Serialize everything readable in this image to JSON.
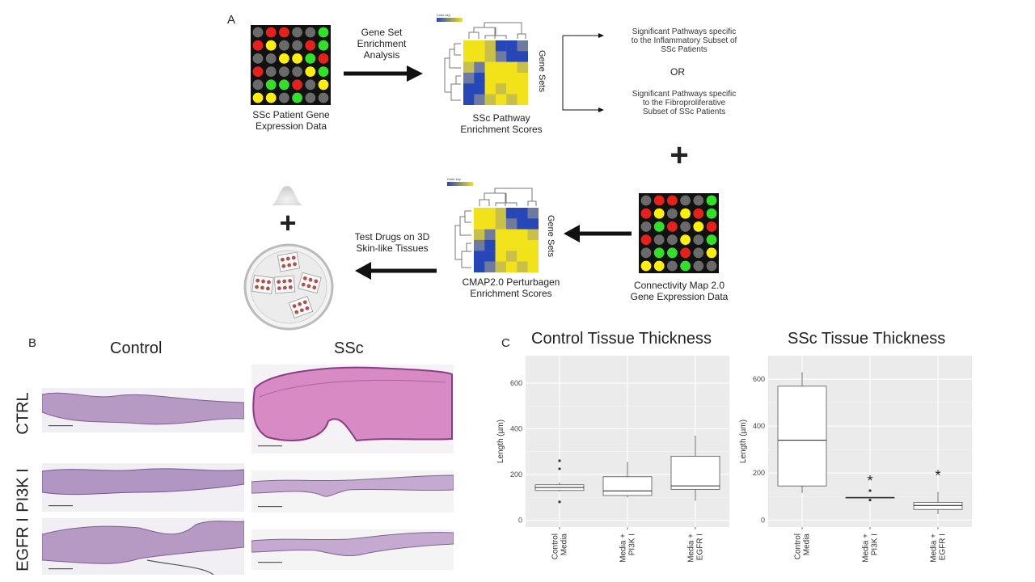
{
  "panel_a": {
    "letter": "A",
    "gene_expression_label": "SSc Patient Gene Expression Data",
    "gsea_label": "Gene Set Enrichment Analysis",
    "heatmap1_label": "SSc Pathway Enrichment Scores",
    "gene_sets_label": "Gene Sets",
    "color_key": "Color key",
    "inflammatory_text": "Significant Pathways specific to the Inflammatory Subset of SSc Patients",
    "or_text": "OR",
    "fibro_text": "Significant Pathways specific to the Fibroproliferative Subset of SSc Patients",
    "plus": "+",
    "cmap_label": "Connectivity Map 2.0  Gene Expression Data",
    "heatmap2_label": "CMAP2.0 Perturbagen Enrichment Scores",
    "test_drugs_label": "Test Drugs on 3D Skin-like Tissues",
    "colors": {
      "red": "#e8201c",
      "green": "#33e028",
      "yellow": "#ffef0a",
      "gray": "#6a6a6a",
      "blue": "#2746b8",
      "heat_yellow": "#f2e21a"
    },
    "grid1": [
      [
        "gray",
        "red",
        "red",
        "gray",
        "gray",
        "green"
      ],
      [
        "red",
        "yellow",
        "gray",
        "gray",
        "red",
        "green"
      ],
      [
        "gray",
        "gray",
        "yellow",
        "yellow",
        "green",
        "red"
      ],
      [
        "red",
        "gray",
        "gray",
        "gray",
        "yellow",
        "green"
      ],
      [
        "gray",
        "green",
        "green",
        "red",
        "gray",
        "yellow"
      ],
      [
        "yellow",
        "yellow",
        "gray",
        "green",
        "gray",
        "gray"
      ]
    ],
    "grid2": [
      [
        "gray",
        "red",
        "red",
        "gray",
        "gray",
        "green"
      ],
      [
        "red",
        "yellow",
        "gray",
        "yellow",
        "red",
        "green"
      ],
      [
        "gray",
        "green",
        "red",
        "gray",
        "yellow",
        "red"
      ],
      [
        "red",
        "gray",
        "gray",
        "yellow",
        "gray",
        "green"
      ],
      [
        "gray",
        "green",
        "green",
        "red",
        "gray",
        "yellow"
      ],
      [
        "yellow",
        "yellow",
        "gray",
        "green",
        "gray",
        "gray"
      ]
    ]
  },
  "panel_b": {
    "letter": "B",
    "columns": [
      "Control",
      "SSc"
    ],
    "rows": [
      "CTRL",
      "PI3K I",
      "EGFR I"
    ]
  },
  "panel_c": {
    "letter": "C",
    "charts": [
      {
        "title": "Control Tissue Thickness",
        "ylabel": "Length (µm)",
        "yticks": [
          "0",
          "200",
          "400",
          "600"
        ],
        "ylim": [
          -30,
          720
        ],
        "categories": [
          "Control Media",
          "Media + PI3K I",
          "Media + EGFR I"
        ],
        "boxes": [
          {
            "min": 125,
            "q1": 130,
            "median": 143,
            "q3": 155,
            "max": 165,
            "outliers": [
              260,
              225,
              80
            ]
          },
          {
            "min": 100,
            "q1": 108,
            "median": 128,
            "q3": 190,
            "max": 255,
            "outliers": []
          },
          {
            "min": 85,
            "q1": 135,
            "median": 150,
            "q3": 280,
            "max": 370,
            "outliers": []
          }
        ],
        "significance": [
          "",
          "",
          ""
        ]
      },
      {
        "title": "SSc Tissue Thickness",
        "ylabel": "Length (µm)",
        "yticks": [
          "0",
          "200",
          "400",
          "600"
        ],
        "ylim": [
          -30,
          700
        ],
        "categories": [
          "Control Media",
          "Media + PI3K I",
          "Media + EGFR I"
        ],
        "boxes": [
          {
            "min": 115,
            "q1": 145,
            "median": 340,
            "q3": 570,
            "max": 630,
            "outliers": []
          },
          {
            "min": 95,
            "q1": 95,
            "median": 95,
            "q3": 97,
            "max": 97,
            "outliers": [
              125,
              85
            ]
          },
          {
            "min": 25,
            "q1": 45,
            "median": 62,
            "q3": 75,
            "max": 120,
            "outliers": []
          }
        ],
        "significance": [
          "",
          "*",
          "*"
        ]
      }
    ]
  }
}
